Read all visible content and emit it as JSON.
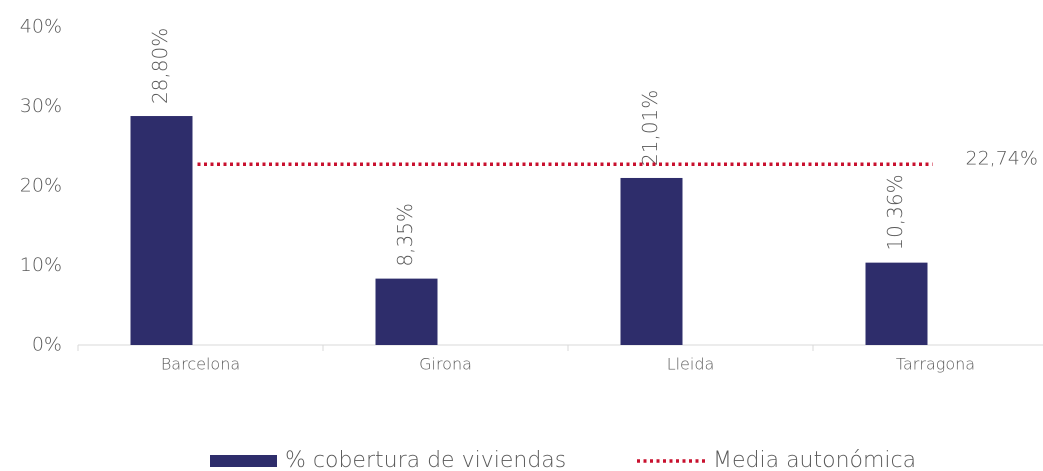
{
  "chart_data": {
    "type": "bar",
    "categories": [
      "Barcelona",
      "Girona",
      "Lleida",
      "Tarragona"
    ],
    "series": [
      {
        "name": "% cobertura de viviendas",
        "type": "bar",
        "color": "#2e2d6b",
        "values": [
          28.8,
          8.35,
          21.01,
          10.36
        ],
        "value_labels": [
          "28,80%",
          "8,35%",
          "21,01%",
          "10,36%"
        ]
      },
      {
        "name": "Media autonómica",
        "type": "line",
        "style": "dotted",
        "color": "#c8102e",
        "values": [
          22.74,
          22.74,
          22.74,
          22.74
        ],
        "value_labels": [
          null,
          null,
          null,
          "22,74%"
        ]
      }
    ],
    "ylim": [
      0,
      40
    ],
    "yticks": [
      {
        "value": 0,
        "label": "0%"
      },
      {
        "value": 10,
        "label": "10%"
      },
      {
        "value": 20,
        "label": "20%"
      },
      {
        "value": 30,
        "label": "30%"
      },
      {
        "value": 40,
        "label": "40%"
      }
    ],
    "grid": false,
    "legend": "bottom"
  }
}
